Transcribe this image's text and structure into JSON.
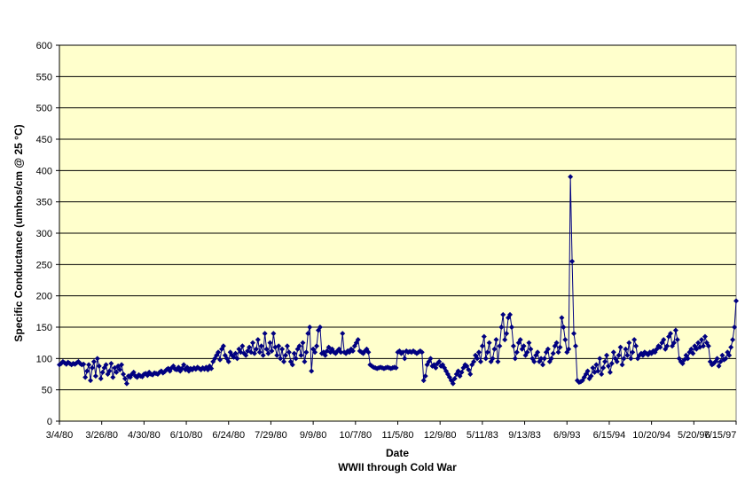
{
  "chart_data": {
    "type": "line",
    "xlabel": "Date",
    "subtitle": "WWII through Cold War",
    "ylabel": "Specific Conductance (umhos/cm @ 25 °C)",
    "ylim": [
      0,
      600
    ],
    "ytick_step": 50,
    "grid": true,
    "legend": "none",
    "x_ticks": [
      "3/4/80",
      "3/26/80",
      "4/30/80",
      "6/10/80",
      "6/24/80",
      "7/29/80",
      "9/9/80",
      "10/7/80",
      "11/5/80",
      "12/9/80",
      "5/11/83",
      "9/13/83",
      "6/9/93",
      "6/15/94",
      "10/20/94",
      "5/20/96",
      "7/15/97"
    ],
    "colors": {
      "plot_bg": "#ffffcc",
      "series": "#000080",
      "grid": "#000000"
    },
    "series": [
      {
        "name": "",
        "marker": "diamond",
        "values": [
          90,
          92,
          95,
          93,
          91,
          94,
          92,
          90,
          92,
          91,
          93,
          95,
          92,
          90,
          91,
          70,
          80,
          90,
          65,
          85,
          95,
          72,
          100,
          88,
          68,
          78,
          85,
          90,
          75,
          80,
          92,
          70,
          85,
          78,
          88,
          82,
          90,
          75,
          68,
          60,
          72,
          70,
          75,
          78,
          72,
          70,
          74,
          72,
          71,
          75,
          76,
          73,
          78,
          75,
          74,
          77,
          76,
          75,
          78,
          80,
          77,
          79,
          82,
          84,
          80,
          85,
          88,
          83,
          82,
          86,
          80,
          84,
          90,
          82,
          86,
          80,
          84,
          82,
          85,
          83,
          86,
          84,
          82,
          85,
          83,
          86,
          82,
          88,
          84,
          95,
          100,
          105,
          110,
          98,
          115,
          120,
          105,
          100,
          95,
          110,
          105,
          102,
          108,
          100,
          115,
          110,
          120,
          108,
          105,
          112,
          118,
          110,
          125,
          108,
          115,
          130,
          110,
          120,
          105,
          140,
          115,
          108,
          125,
          112,
          140,
          118,
          105,
          120,
          100,
          115,
          95,
          105,
          120,
          110,
          95,
          90,
          108,
          100,
          115,
          120,
          105,
          125,
          95,
          110,
          140,
          150,
          80,
          115,
          110,
          120,
          145,
          150,
          108,
          110,
          105,
          112,
          118,
          110,
          115,
          110,
          108,
          112,
          115,
          110,
          140,
          110,
          108,
          112,
          110,
          115,
          112,
          120,
          125,
          130,
          112,
          110,
          108,
          112,
          115,
          110,
          90,
          88,
          86,
          85,
          84,
          85,
          86,
          85,
          84,
          85,
          86,
          85,
          84,
          85,
          86,
          85,
          110,
          112,
          108,
          110,
          100,
          112,
          110,
          111,
          110,
          112,
          110,
          108,
          110,
          112,
          110,
          65,
          72,
          90,
          95,
          100,
          88,
          90,
          85,
          92,
          95,
          88,
          90,
          85,
          80,
          75,
          70,
          65,
          60,
          68,
          75,
          80,
          72,
          78,
          85,
          90,
          88,
          82,
          75,
          90,
          95,
          105,
          100,
          110,
          95,
          120,
          135,
          100,
          110,
          125,
          95,
          100,
          115,
          130,
          95,
          120,
          150,
          170,
          130,
          140,
          165,
          170,
          150,
          120,
          100,
          110,
          125,
          130,
          115,
          120,
          105,
          110,
          125,
          115,
          100,
          95,
          105,
          110,
          95,
          100,
          90,
          100,
          110,
          115,
          95,
          100,
          108,
          120,
          125,
          110,
          118,
          165,
          150,
          130,
          110,
          115,
          390,
          255,
          140,
          120,
          65,
          62,
          63,
          65,
          70,
          75,
          80,
          68,
          72,
          85,
          78,
          90,
          80,
          100,
          75,
          85,
          95,
          105,
          88,
          78,
          92,
          110,
          100,
          95,
          105,
          118,
          90,
          100,
          115,
          105,
          125,
          100,
          110,
          130,
          120,
          100,
          105,
          108,
          105,
          110,
          108,
          106,
          110,
          108,
          112,
          110,
          115,
          120,
          118,
          125,
          130,
          115,
          120,
          135,
          140,
          120,
          125,
          145,
          130,
          100,
          95,
          92,
          98,
          105,
          100,
          110,
          115,
          108,
          120,
          115,
          125,
          118,
          130,
          120,
          135,
          125,
          120,
          95,
          90,
          92,
          95,
          100,
          88,
          95,
          105,
          98,
          100,
          110,
          105,
          118,
          130,
          150,
          192
        ]
      }
    ]
  }
}
